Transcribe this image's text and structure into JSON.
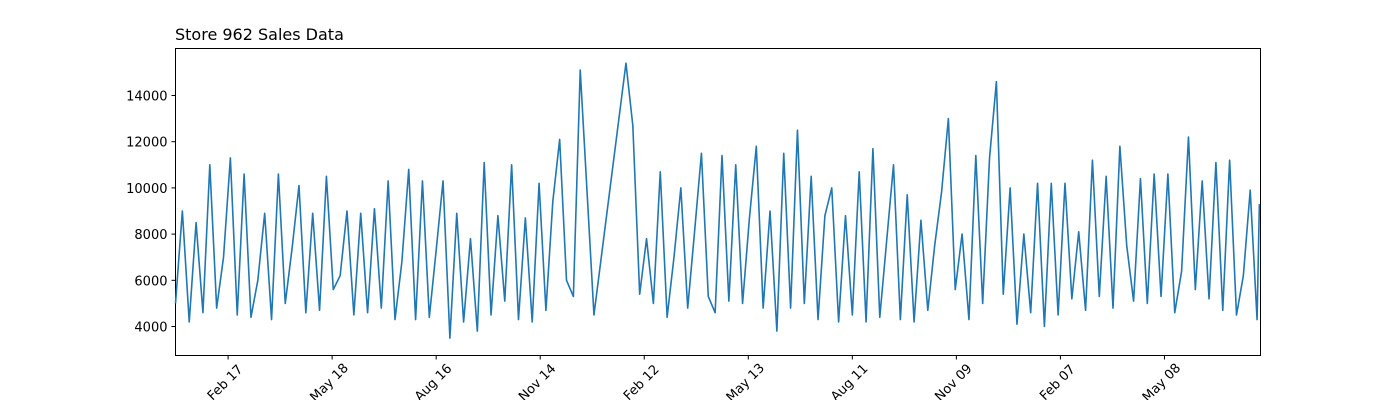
{
  "chart_data": {
    "type": "line",
    "title": "Store 962 Sales Data",
    "x": [
      0,
      6,
      12,
      18,
      24,
      30,
      36,
      42,
      48,
      54,
      60,
      66,
      72,
      78,
      84,
      90,
      96,
      102,
      108,
      114,
      120,
      126,
      132,
      138,
      144,
      150,
      156,
      162,
      168,
      174,
      180,
      186,
      192,
      198,
      204,
      210,
      216,
      222,
      228,
      234,
      240,
      246,
      252,
      258,
      264,
      270,
      276,
      282,
      288,
      294,
      300,
      306,
      312,
      318,
      324,
      330,
      336,
      342,
      348,
      354,
      360,
      366,
      394,
      400,
      406,
      412,
      418,
      424,
      430,
      436,
      442,
      448,
      454,
      460,
      466,
      472,
      478,
      484,
      490,
      496,
      502,
      508,
      514,
      520,
      526,
      532,
      538,
      544,
      550,
      556,
      562,
      568,
      574,
      580,
      586,
      592,
      598,
      604,
      610,
      616,
      622,
      628,
      634,
      640,
      646,
      652,
      658,
      664,
      670,
      676,
      682,
      688,
      694,
      700,
      706,
      712,
      718,
      724,
      730,
      736,
      742,
      748,
      754,
      760,
      766,
      772,
      778,
      784,
      790,
      796,
      802,
      808,
      814,
      820,
      826,
      832,
      838,
      844,
      850,
      856,
      862,
      868,
      874,
      880,
      886,
      892,
      898,
      904,
      910,
      916,
      922,
      928,
      934,
      940,
      946,
      948
    ],
    "series": [
      {
        "name": "Sales",
        "color": "#1f77b4",
        "values": [
          5000,
          9000,
          4200,
          8500,
          4600,
          11000,
          4800,
          7000,
          11300,
          4500,
          10600,
          4400,
          6000,
          8900,
          4300,
          10600,
          5000,
          7400,
          10100,
          4600,
          8900,
          4700,
          10500,
          5600,
          6200,
          9000,
          4500,
          8900,
          4600,
          9100,
          4800,
          10300,
          4300,
          6800,
          10800,
          4300,
          10300,
          4400,
          7300,
          10300,
          3500,
          8900,
          4200,
          7800,
          3800,
          11100,
          4500,
          8800,
          5100,
          11000,
          4300,
          8700,
          4200,
          10200,
          4700,
          9400,
          12100,
          6000,
          5300,
          15100,
          9800,
          4500,
          15400,
          12700,
          5400,
          7800,
          5000,
          10700,
          4400,
          7000,
          10000,
          4800,
          8100,
          11500,
          5300,
          4600,
          11400,
          5100,
          11000,
          5000,
          8700,
          11800,
          4800,
          9000,
          3800,
          11500,
          4800,
          12500,
          5000,
          10500,
          4300,
          8800,
          10000,
          4200,
          8800,
          4500,
          10700,
          4200,
          11700,
          4400,
          7700,
          11000,
          4300,
          9700,
          4200,
          8600,
          4700,
          7500,
          9800,
          13000,
          5600,
          8000,
          4300,
          11400,
          5000,
          11300,
          14600,
          5400,
          10000,
          4100,
          8000,
          4600,
          10200,
          4000,
          10200,
          4500,
          10200,
          5200,
          8100,
          4700,
          11200,
          5300,
          10500,
          4800,
          11800,
          7500,
          5100,
          10400,
          5000,
          10600,
          5300,
          10600,
          4600,
          6400,
          12200,
          5600,
          10300,
          5200,
          11100,
          4700,
          11200,
          4500,
          6200,
          9900,
          4300,
          9300
        ]
      }
    ],
    "xlim": [
      0,
      949
    ],
    "xticks": [
      {
        "value": 46,
        "label": "Feb 17"
      },
      {
        "value": 137,
        "label": "May 18"
      },
      {
        "value": 228,
        "label": "Aug 16"
      },
      {
        "value": 319,
        "label": "Nov 14"
      },
      {
        "value": 410,
        "label": "Feb 12"
      },
      {
        "value": 501,
        "label": "May 13"
      },
      {
        "value": 592,
        "label": "Aug 11"
      },
      {
        "value": 683,
        "label": "Nov 09"
      },
      {
        "value": 774,
        "label": "Feb 07"
      },
      {
        "value": 865,
        "label": "May 08"
      }
    ],
    "ylim": [
      2745,
      16035
    ],
    "yticks": [
      4000,
      6000,
      8000,
      10000,
      12000,
      14000
    ],
    "grid": false
  }
}
